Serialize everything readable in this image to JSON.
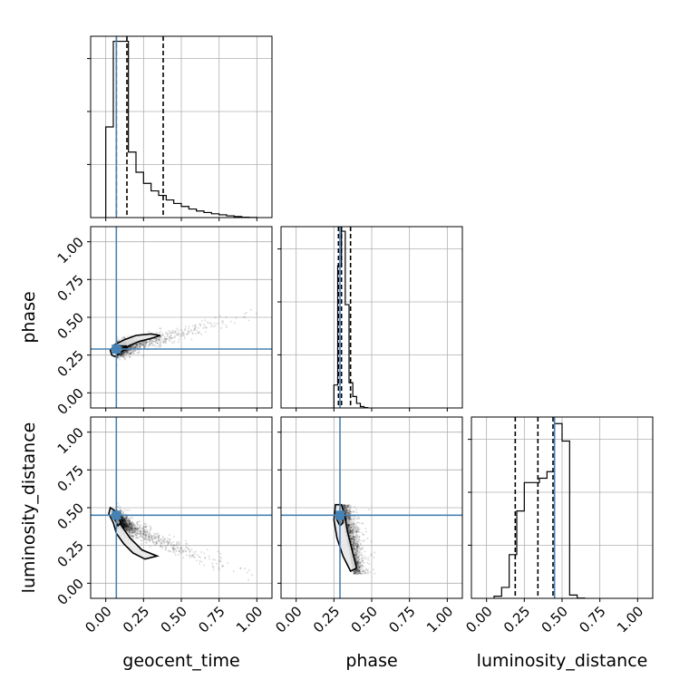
{
  "chart_data": {
    "type": "corner",
    "parameters": [
      "geocent_time",
      "phase",
      "luminosity_distance"
    ],
    "axis_range": [
      -0.1,
      1.1
    ],
    "ticks": [
      0.0,
      0.25,
      0.5,
      0.75,
      1.0
    ],
    "tick_labels": [
      "0.00",
      "0.25",
      "0.50",
      "0.75",
      "1.00"
    ],
    "grid": true,
    "colors": {
      "truth": "#4682b4",
      "hist": "#000000",
      "grid": "#b0b0b0",
      "scatter": "#000000"
    },
    "truths": {
      "geocent_time": 0.07,
      "phase": 0.29,
      "luminosity_distance": 0.45
    },
    "quantiles": {
      "geocent_time": [
        0.07,
        0.14,
        0.38
      ],
      "phase": [
        0.28,
        0.3,
        0.36
      ],
      "luminosity_distance": [
        0.19,
        0.34,
        0.44
      ]
    },
    "histograms": {
      "geocent_time": {
        "bin_start": 0.0,
        "bin_width": 0.05,
        "values": [
          1800,
          3500,
          3500,
          1300,
          900,
          680,
          530,
          440,
          350,
          280,
          220,
          170,
          130,
          100,
          75,
          55,
          35,
          20,
          8,
          3
        ],
        "ymax": 3600
      },
      "phase": {
        "bin_start": 0.25,
        "bin_width": 0.025,
        "values": [
          1000,
          6200,
          7700,
          4500,
          1100,
          500,
          200,
          60,
          15
        ],
        "ymax": 7900
      },
      "luminosity_distance": {
        "bin_start": 0.05,
        "bin_width": 0.05,
        "values": [
          100,
          500,
          2000,
          4000,
          5300,
          5300,
          5500,
          5800,
          8000,
          7200,
          150,
          10
        ],
        "ymax": 8300
      }
    },
    "contours": {
      "phase_vs_geocent_time": {
        "outer": [
          [
            0.06,
            0.24
          ],
          [
            0.1,
            0.27
          ],
          [
            0.15,
            0.31
          ],
          [
            0.22,
            0.34
          ],
          [
            0.3,
            0.36
          ],
          [
            0.36,
            0.38
          ],
          [
            0.3,
            0.39
          ],
          [
            0.2,
            0.38
          ],
          [
            0.12,
            0.35
          ],
          [
            0.06,
            0.32
          ],
          [
            0.03,
            0.28
          ],
          [
            0.04,
            0.25
          ]
        ],
        "inner": [
          [
            0.06,
            0.27
          ],
          [
            0.1,
            0.29
          ],
          [
            0.14,
            0.31
          ],
          [
            0.1,
            0.31
          ],
          [
            0.06,
            0.3
          ],
          [
            0.05,
            0.28
          ]
        ]
      },
      "luminosity_distance_vs_geocent_time": {
        "outer": [
          [
            0.03,
            0.5
          ],
          [
            0.06,
            0.48
          ],
          [
            0.09,
            0.4
          ],
          [
            0.16,
            0.3
          ],
          [
            0.24,
            0.22
          ],
          [
            0.34,
            0.18
          ],
          [
            0.26,
            0.16
          ],
          [
            0.18,
            0.2
          ],
          [
            0.12,
            0.26
          ],
          [
            0.07,
            0.33
          ],
          [
            0.05,
            0.4
          ],
          [
            0.02,
            0.46
          ]
        ],
        "inner": [
          [
            0.05,
            0.47
          ],
          [
            0.08,
            0.44
          ],
          [
            0.1,
            0.4
          ],
          [
            0.08,
            0.38
          ],
          [
            0.06,
            0.42
          ],
          [
            0.04,
            0.45
          ]
        ]
      },
      "luminosity_distance_vs_phase": {
        "outer": [
          [
            0.26,
            0.52
          ],
          [
            0.3,
            0.52
          ],
          [
            0.32,
            0.45
          ],
          [
            0.34,
            0.34
          ],
          [
            0.37,
            0.22
          ],
          [
            0.4,
            0.1
          ],
          [
            0.36,
            0.08
          ],
          [
            0.31,
            0.18
          ],
          [
            0.27,
            0.3
          ],
          [
            0.25,
            0.42
          ]
        ],
        "inner": [
          [
            0.28,
            0.47
          ],
          [
            0.31,
            0.47
          ],
          [
            0.31,
            0.4
          ],
          [
            0.29,
            0.38
          ],
          [
            0.27,
            0.42
          ]
        ]
      }
    }
  }
}
